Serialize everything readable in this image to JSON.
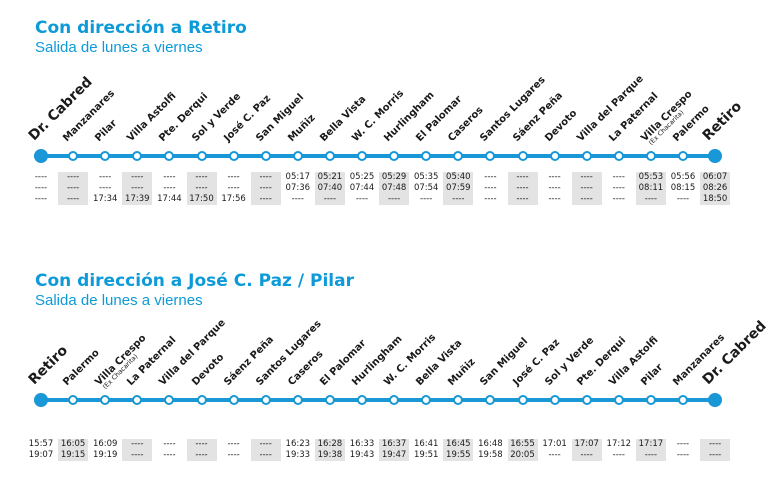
{
  "sections": [
    {
      "title": "Con dirección a Retiro",
      "subtitle": "Salida de lunes a viernes",
      "stations": [
        {
          "name": "Dr. Cabred",
          "terminal": true
        },
        {
          "name": "Manzanares"
        },
        {
          "name": "Pilar"
        },
        {
          "name": "Villa Astolfi"
        },
        {
          "name": "Pte. Derqui"
        },
        {
          "name": "Sol y Verde"
        },
        {
          "name": "José C. Paz"
        },
        {
          "name": "San Miguel"
        },
        {
          "name": "Muñiz"
        },
        {
          "name": "Bella Vista"
        },
        {
          "name": "W. C. Morris"
        },
        {
          "name": "Hurlingham"
        },
        {
          "name": "El Palomar"
        },
        {
          "name": "Caseros"
        },
        {
          "name": "Santos Lugares"
        },
        {
          "name": "Sáenz Peña"
        },
        {
          "name": "Devoto"
        },
        {
          "name": "Villa del Parque"
        },
        {
          "name": "La Paternal"
        },
        {
          "name": "Villa Crespo",
          "sub": "(Ex Chacarita)"
        },
        {
          "name": "Palermo"
        },
        {
          "name": "Retiro",
          "terminal": true
        }
      ],
      "times": [
        [
          "----",
          "----",
          "----"
        ],
        [
          "----",
          "----",
          "----"
        ],
        [
          "----",
          "----",
          "17:34"
        ],
        [
          "----",
          "----",
          "17:39"
        ],
        [
          "----",
          "----",
          "17:44"
        ],
        [
          "----",
          "----",
          "17:50"
        ],
        [
          "----",
          "----",
          "17:56"
        ],
        [
          "----",
          "----",
          "----"
        ],
        [
          "05:17",
          "07:36",
          "----"
        ],
        [
          "05:21",
          "07:40",
          "----"
        ],
        [
          "05:25",
          "07:44",
          "----"
        ],
        [
          "05:29",
          "07:48",
          "----"
        ],
        [
          "05:35",
          "07:54",
          "----"
        ],
        [
          "05:40",
          "07:59",
          "----"
        ],
        [
          "----",
          "----",
          "----"
        ],
        [
          "----",
          "----",
          "----"
        ],
        [
          "----",
          "----",
          "----"
        ],
        [
          "----",
          "----",
          "----"
        ],
        [
          "----",
          "----",
          "----"
        ],
        [
          "05:53",
          "08:11",
          "----"
        ],
        [
          "05:56",
          "08:15",
          "----"
        ],
        [
          "06:07",
          "08:26",
          "18:50"
        ]
      ]
    },
    {
      "title": "Con dirección a José C. Paz / Pilar",
      "subtitle": "Salida de lunes a viernes",
      "stations": [
        {
          "name": "Retiro",
          "terminal": true
        },
        {
          "name": "Palermo"
        },
        {
          "name": "Villa Crespo",
          "sub": "(Ex Chacarita)"
        },
        {
          "name": "La Paternal"
        },
        {
          "name": "Villa del Parque"
        },
        {
          "name": "Devoto"
        },
        {
          "name": "Sáenz Peña"
        },
        {
          "name": "Santos Lugares"
        },
        {
          "name": "Caseros"
        },
        {
          "name": "El Palomar"
        },
        {
          "name": "Hurlingham"
        },
        {
          "name": "W. C. Morris"
        },
        {
          "name": "Bella Vista"
        },
        {
          "name": "Muñiz"
        },
        {
          "name": "San Miguel"
        },
        {
          "name": "José C. Paz"
        },
        {
          "name": "Sol y Verde"
        },
        {
          "name": "Pte. Derqui"
        },
        {
          "name": "Villa Astolfi"
        },
        {
          "name": "Pilar"
        },
        {
          "name": "Manzanares"
        },
        {
          "name": "Dr. Cabred",
          "terminal": true
        }
      ],
      "times": [
        [
          "15:57",
          "19:07"
        ],
        [
          "16:05",
          "19:15"
        ],
        [
          "16:09",
          "19:19"
        ],
        [
          "----",
          "----"
        ],
        [
          "----",
          "----"
        ],
        [
          "----",
          "----"
        ],
        [
          "----",
          "----"
        ],
        [
          "----",
          "----"
        ],
        [
          "16:23",
          "19:33"
        ],
        [
          "16:28",
          "19:38"
        ],
        [
          "16:33",
          "19:43"
        ],
        [
          "16:37",
          "19:47"
        ],
        [
          "16:41",
          "19:51"
        ],
        [
          "16:45",
          "19:55"
        ],
        [
          "16:48",
          "19:58"
        ],
        [
          "16:55",
          "20:05"
        ],
        [
          "17:01",
          "----"
        ],
        [
          "17:07",
          "----"
        ],
        [
          "17:12",
          "----"
        ],
        [
          "17:17",
          "----"
        ],
        [
          "----",
          "----"
        ],
        [
          "----",
          "----"
        ]
      ]
    }
  ],
  "colors": {
    "accent": "#1997d7",
    "title": "#0d9ad8",
    "shade": "#e3e3e3"
  }
}
